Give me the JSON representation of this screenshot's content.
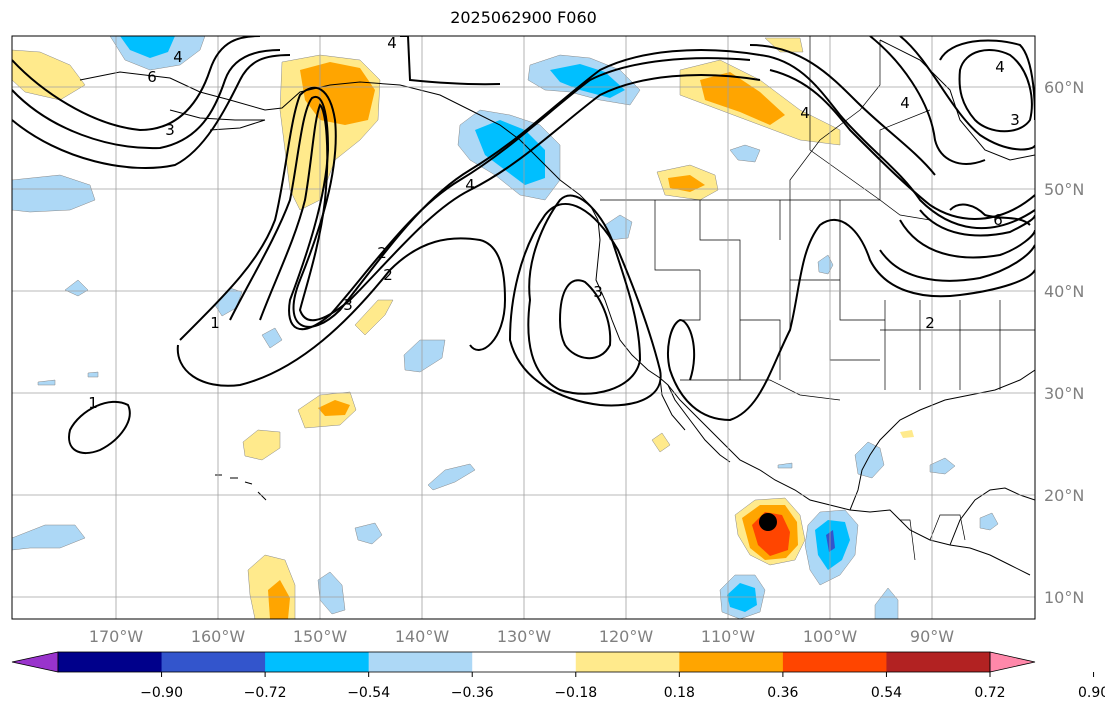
{
  "title": "2025062900 F060",
  "latitude_labels": [
    "60°N",
    "50°N",
    "40°N",
    "30°N",
    "20°N",
    "10°N"
  ],
  "longitude_labels": [
    "170°W",
    "160°W",
    "150°W",
    "140°W",
    "130°W",
    "120°W",
    "110°W",
    "100°W",
    "90°W"
  ],
  "colorbar": {
    "tick_labels": [
      "−0.90",
      "−0.72",
      "−0.54",
      "−0.36",
      "−0.18",
      "0.18",
      "0.36",
      "0.54",
      "0.72",
      "0.90"
    ],
    "colors": [
      "#9933cc",
      "#00008b",
      "#3355cc",
      "#00bfff",
      "#add8f6",
      "#ffffff",
      "#ffea8c",
      "#ffa500",
      "#ff4500",
      "#b22222",
      "#ff88aa"
    ]
  },
  "contour_labels": [
    "4",
    "4",
    "6",
    "4",
    "3",
    "4",
    "2",
    "3",
    "2",
    "1",
    "3",
    "1",
    "4",
    "4",
    "3",
    "2",
    "6"
  ],
  "marker": {
    "name": "storm-center",
    "color": "#000000"
  },
  "colors": {
    "land_border": "#000000",
    "grid": "#a0a0a0",
    "contour": "#000000"
  }
}
